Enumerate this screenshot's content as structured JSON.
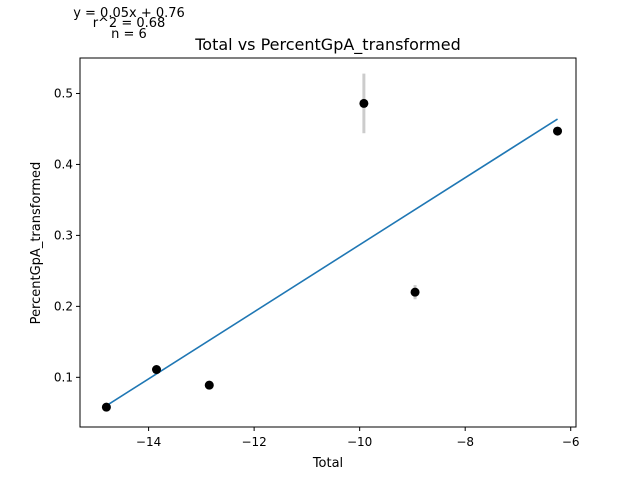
{
  "chart_data": {
    "type": "scatter",
    "title": "Total vs PercentGpA_transformed",
    "xlabel": "Total",
    "ylabel": "PercentGpA_transformed",
    "xlim": [
      -15.3,
      -5.9
    ],
    "ylim": [
      0.03,
      0.55
    ],
    "xticks": [
      -14,
      -12,
      -10,
      -8,
      -6
    ],
    "xtick_labels": [
      "−14",
      "−12",
      "−10",
      "−8",
      "−6"
    ],
    "yticks": [
      0.1,
      0.2,
      0.3,
      0.4,
      0.5
    ],
    "ytick_labels": [
      "0.1",
      "0.2",
      "0.3",
      "0.4",
      "0.5"
    ],
    "grid": false,
    "points": [
      {
        "x": -14.8,
        "y": 0.058,
        "err": 0
      },
      {
        "x": -13.85,
        "y": 0.111,
        "err": 0
      },
      {
        "x": -12.85,
        "y": 0.089,
        "err": 0
      },
      {
        "x": -9.92,
        "y": 0.486,
        "err": 0.042
      },
      {
        "x": -8.95,
        "y": 0.22,
        "err": 0.01
      },
      {
        "x": -6.25,
        "y": 0.447,
        "err": 0
      }
    ],
    "fit_line": {
      "x": [
        -14.8,
        -6.25
      ],
      "y": [
        0.06,
        0.464
      ]
    },
    "annotations": [
      "y = 0.05x + 0.76",
      "r^2 = 0.68",
      "n = 6"
    ],
    "colors": {
      "points": "#000000",
      "fit_line": "#1f77b4",
      "error_bars": "#cccccc",
      "axes": "#000000"
    }
  }
}
